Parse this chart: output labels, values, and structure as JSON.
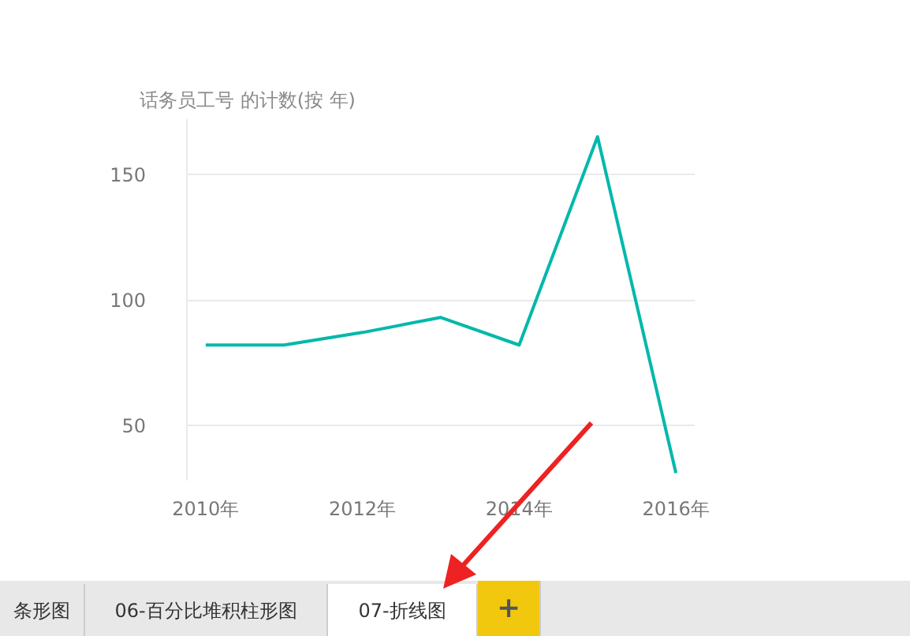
{
  "chart_data": {
    "type": "line",
    "title": "话务员工号 的计数(按 年)",
    "x": [
      2010,
      2011,
      2012,
      2013,
      2014,
      2015,
      2016
    ],
    "series": [
      {
        "color": "#01b8aa",
        "values": [
          82,
          82,
          87,
          93,
          82,
          165,
          31
        ]
      }
    ],
    "xlim": [
      2009.76,
      2016.24
    ],
    "ylim": [
      28,
      172
    ],
    "xticks": [
      {
        "value": 2010,
        "label": "2010年"
      },
      {
        "value": 2012,
        "label": "2012年"
      },
      {
        "value": 2014,
        "label": "2014年"
      },
      {
        "value": 2016,
        "label": "2016年"
      }
    ],
    "yticks": [
      50,
      100,
      150
    ],
    "grid": "y",
    "marker": "none",
    "line_style": "solid",
    "annotations": [
      "条形图",
      "06-百分比堆积柱形图",
      "07-折线图",
      "+"
    ]
  }
}
